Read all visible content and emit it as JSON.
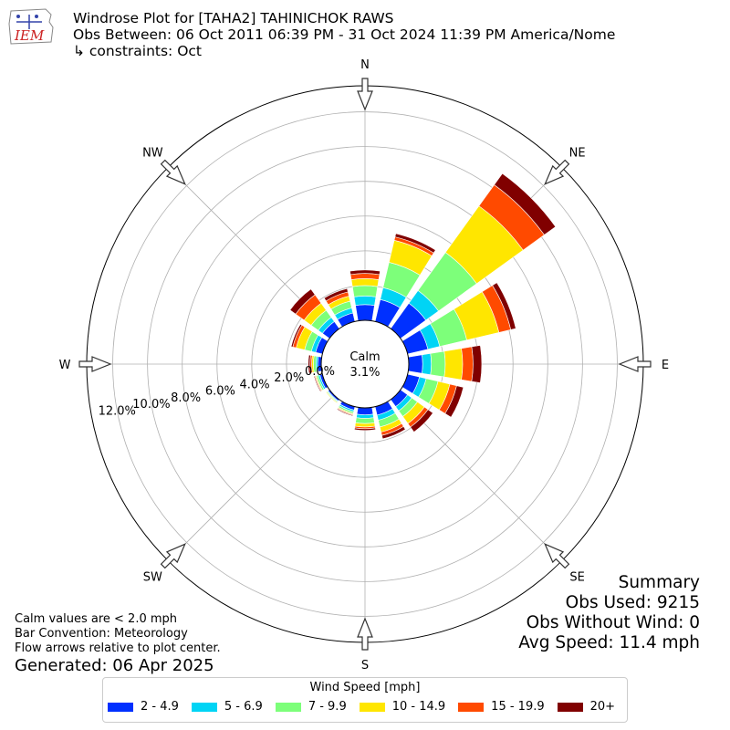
{
  "logo": {
    "text": "IEM"
  },
  "title": {
    "line1": "Windrose Plot for [TAHA2] TAHINICHOK RAWS",
    "line2": "Obs Between: 06 Oct 2011 06:39 PM - 31 Oct 2024 11:39 PM America/Nome",
    "line3": "↳ constraints: Oct"
  },
  "summary": {
    "heading": "Summary",
    "obs_used": "Obs Used: 9215",
    "obs_without_wind": "Obs Without Wind: 0",
    "avg_speed": "Avg Speed: 11.4 mph"
  },
  "notes": {
    "calm": "Calm values are < 2.0 mph",
    "convention": "Bar Convention: Meteorology",
    "flow": "Flow arrows relative to plot center."
  },
  "generated": "Generated: 06 Apr 2025",
  "legend": {
    "title": "Wind Speed [mph]"
  },
  "chart_data": {
    "type": "windrose",
    "calm": {
      "label": "Calm",
      "value": "3.1%"
    },
    "directions": [
      "N",
      "NNE",
      "NE",
      "ENE",
      "E",
      "ESE",
      "SE",
      "SSE",
      "S",
      "SSW",
      "SW",
      "WSW",
      "W",
      "WNW",
      "NW",
      "NNW"
    ],
    "compass_labels": [
      "N",
      "NE",
      "E",
      "SE",
      "S",
      "SW",
      "W",
      "NW"
    ],
    "radial_ticks": [
      0,
      2,
      4,
      6,
      8,
      10,
      12
    ],
    "radial_tick_labels": [
      "0.0%",
      "2.0%",
      "4.0%",
      "6.0%",
      "8.0%",
      "10.0%",
      "12.0%"
    ],
    "rmax": 13.5,
    "series": [
      {
        "name": "2 - 4.9",
        "color": "#0030ff",
        "values": [
          0.9,
          1.3,
          1.8,
          1.2,
          0.8,
          0.7,
          0.5,
          0.5,
          0.4,
          0.2,
          0.1,
          0.15,
          0.2,
          0.4,
          0.5,
          0.5
        ]
      },
      {
        "name": "5 - 6.9",
        "color": "#00d4f5",
        "values": [
          0.5,
          0.7,
          0.9,
          0.7,
          0.5,
          0.4,
          0.3,
          0.3,
          0.2,
          0.1,
          0.05,
          0.1,
          0.1,
          0.25,
          0.3,
          0.3
        ]
      },
      {
        "name": "7 - 9.9",
        "color": "#7dff7a",
        "values": [
          0.6,
          1.5,
          2.7,
          1.6,
          0.8,
          0.7,
          0.4,
          0.4,
          0.3,
          0.1,
          0.05,
          0.1,
          0.15,
          0.4,
          0.5,
          0.4
        ]
      },
      {
        "name": "10 - 14.9",
        "color": "#ffe600",
        "values": [
          0.4,
          1.3,
          3.3,
          1.9,
          1.0,
          0.7,
          0.5,
          0.3,
          0.2,
          0.05,
          0.05,
          0.05,
          0.1,
          0.5,
          0.5,
          0.3
        ]
      },
      {
        "name": "15 - 19.9",
        "color": "#ff4a00",
        "values": [
          0.3,
          0.2,
          1.5,
          0.7,
          0.6,
          0.4,
          0.25,
          0.2,
          0.1,
          0.05,
          0.0,
          0.05,
          0.1,
          0.2,
          0.6,
          0.25
        ]
      },
      {
        "name": "20+",
        "color": "#800000",
        "values": [
          0.2,
          0.2,
          0.8,
          0.3,
          0.5,
          0.4,
          0.35,
          0.2,
          0.1,
          0.05,
          0.0,
          0.05,
          0.1,
          0.1,
          0.4,
          0.2
        ]
      }
    ]
  }
}
